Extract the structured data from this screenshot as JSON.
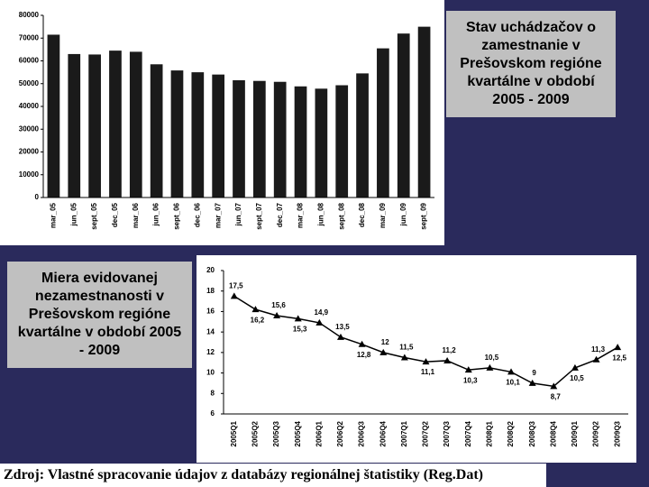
{
  "chart_data": [
    {
      "type": "bar",
      "title": "Stav uchádzačov o zamestnanie v Prešovskom regióne kvartálne v období 2005 - 2009",
      "categories": [
        "mar_05",
        "jun_05",
        "sept_05",
        "dec_05",
        "mar_06",
        "jun_06",
        "sept_06",
        "dec_06",
        "mar_07",
        "jun_07",
        "sept_07",
        "dec_07",
        "mar_08",
        "jun_08",
        "sept_08",
        "dec_08",
        "mar_09",
        "jun_09",
        "sept_09"
      ],
      "values": [
        71500,
        63000,
        62800,
        64500,
        64000,
        58500,
        55800,
        55000,
        54000,
        51500,
        51200,
        50800,
        48800,
        47800,
        49300,
        54500,
        65500,
        72000,
        75000
      ],
      "color": "#1a1a1a",
      "ylim": [
        0,
        80000
      ],
      "yticks": [
        0,
        10000,
        20000,
        30000,
        40000,
        50000,
        60000,
        70000,
        80000
      ]
    },
    {
      "type": "line",
      "title": "Miera evidovanej nezamestnanosti v Prešovskom regióne kvartálne v období 2005 - 2009",
      "categories": [
        "2005Q1",
        "2005Q2",
        "2005Q3",
        "2005Q4",
        "2006Q1",
        "2006Q2",
        "2006Q3",
        "2006Q4",
        "2007Q1",
        "2007Q2",
        "2007Q3",
        "2007Q4",
        "2008Q1",
        "2008Q2",
        "2008Q3",
        "2008Q4",
        "2009Q1",
        "2009Q2",
        "2009Q3"
      ],
      "values": [
        17.5,
        16.2,
        15.6,
        15.3,
        14.9,
        13.5,
        12.8,
        12,
        11.5,
        11.1,
        11.2,
        10.3,
        10.5,
        10.1,
        9,
        8.7,
        10.5,
        11.3,
        12.5
      ],
      "value_labels": [
        "17,5",
        "16,2",
        "15,6",
        "15,3",
        "14,9",
        "13,5",
        "12,8",
        "12",
        "11,5",
        "11,1",
        "11,2",
        "10,3",
        "10,5",
        "10,1",
        "9",
        "8,7",
        "10,5",
        "11,3",
        "12,5"
      ],
      "color": "#000000",
      "ylim": [
        6,
        20
      ],
      "yticks": [
        6,
        8,
        10,
        12,
        14,
        16,
        18,
        20
      ]
    }
  ],
  "source": "Zdroj: Vlastné spracovanie údajov z databázy regionálnej štatistiky (Reg.Dat)"
}
